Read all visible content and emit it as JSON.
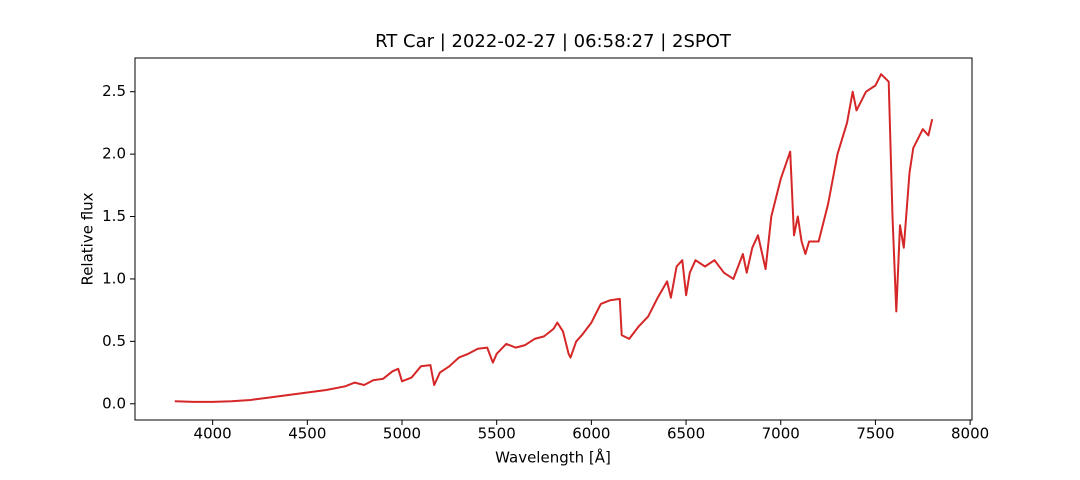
{
  "chart_data": {
    "type": "line",
    "title": "RT Car | 2022-02-27 | 06:58:27 | 2SPOT",
    "xlabel": "Wavelength [Å]",
    "ylabel": "Relative flux",
    "xlim": [
      3590,
      8010
    ],
    "ylim": [
      -0.13,
      2.77
    ],
    "xticks": [
      4000,
      4500,
      5000,
      5500,
      6000,
      6500,
      7000,
      7500,
      8000
    ],
    "yticks": [
      {
        "value": 0,
        "label": "0.0"
      },
      0.5,
      {
        "value": 1,
        "label": "1.0"
      },
      1.5,
      {
        "value": 2,
        "label": "2.0"
      },
      2.5
    ],
    "series": [
      {
        "color": "#d62728",
        "x": [
          3800,
          3900,
          4000,
          4100,
          4200,
          4300,
          4400,
          4500,
          4600,
          4700,
          4750,
          4800,
          4850,
          4900,
          4950,
          4980,
          5000,
          5050,
          5100,
          5150,
          5170,
          5200,
          5250,
          5300,
          5350,
          5400,
          5450,
          5480,
          5500,
          5550,
          5600,
          5650,
          5700,
          5750,
          5800,
          5820,
          5850,
          5880,
          5890,
          5920,
          5950,
          6000,
          6050,
          6100,
          6150,
          6160,
          6200,
          6250,
          6300,
          6350,
          6400,
          6420,
          6450,
          6480,
          6500,
          6520,
          6550,
          6600,
          6650,
          6700,
          6750,
          6800,
          6820,
          6850,
          6880,
          6920,
          6950,
          7000,
          7050,
          7070,
          7090,
          7110,
          7130,
          7150,
          7200,
          7250,
          7300,
          7350,
          7380,
          7400,
          7450,
          7500,
          7530,
          7570,
          7590,
          7610,
          7630,
          7650,
          7680,
          7700,
          7750,
          7780,
          7800
        ],
        "values": [
          0.02,
          0.015,
          0.015,
          0.02,
          0.03,
          0.05,
          0.07,
          0.09,
          0.11,
          0.14,
          0.17,
          0.15,
          0.19,
          0.2,
          0.26,
          0.28,
          0.18,
          0.21,
          0.3,
          0.31,
          0.15,
          0.25,
          0.3,
          0.37,
          0.4,
          0.44,
          0.45,
          0.33,
          0.4,
          0.48,
          0.45,
          0.47,
          0.52,
          0.54,
          0.6,
          0.65,
          0.58,
          0.4,
          0.37,
          0.5,
          0.55,
          0.65,
          0.8,
          0.83,
          0.84,
          0.55,
          0.52,
          0.62,
          0.7,
          0.85,
          0.98,
          0.85,
          1.1,
          1.15,
          0.87,
          1.05,
          1.15,
          1.1,
          1.15,
          1.05,
          1.0,
          1.2,
          1.05,
          1.25,
          1.35,
          1.08,
          1.5,
          1.8,
          2.02,
          1.35,
          1.5,
          1.3,
          1.2,
          1.3,
          1.3,
          1.6,
          2.0,
          2.25,
          2.5,
          2.35,
          2.5,
          2.55,
          2.64,
          2.58,
          1.5,
          0.74,
          1.43,
          1.25,
          1.85,
          2.05,
          2.2,
          2.15,
          2.28
        ]
      }
    ]
  }
}
